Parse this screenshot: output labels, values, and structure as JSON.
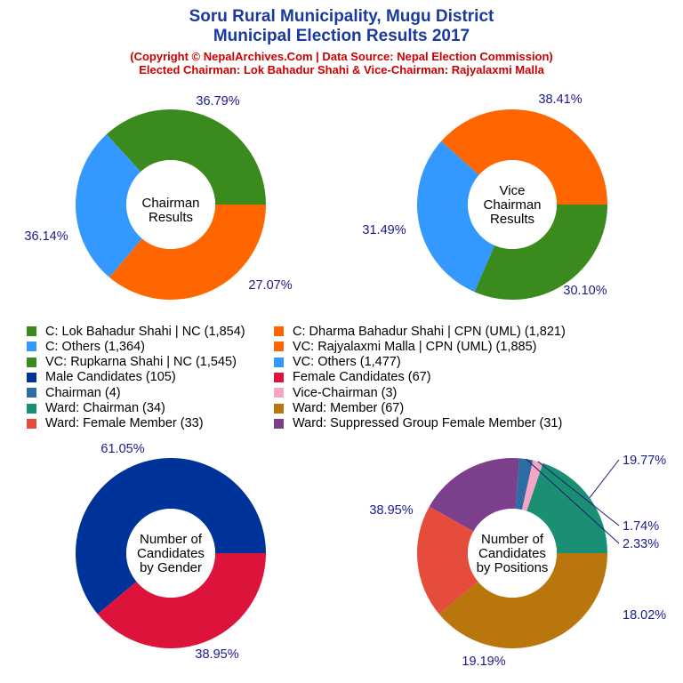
{
  "header": {
    "title_line1": "Soru Rural Municipality, Mugu District",
    "title_line2": "Municipal Election Results 2017",
    "subtitle_line1": "(Copyright © NepalArchives.Com | Data Source: Nepal Election Commission)",
    "subtitle_line2": "Elected Chairman: Lok Bahadur Shahi & Vice-Chairman: Rajyalaxmi Malla"
  },
  "legend": {
    "items": [
      {
        "label": "C: Lok Bahadur Shahi | NC (1,854)",
        "color": "#3a8a1e"
      },
      {
        "label": "C: Dharma Bahadur Shahi | CPN (UML) (1,821)",
        "color": "#ff6600"
      },
      {
        "label": "C: Others (1,364)",
        "color": "#3399ff"
      },
      {
        "label": "VC: Rajyalaxmi Malla | CPN (UML) (1,885)",
        "color": "#ff6600"
      },
      {
        "label": "VC: Rupkarna Shahi | NC (1,545)",
        "color": "#3a8a1e"
      },
      {
        "label": "VC: Others (1,477)",
        "color": "#3399ff"
      },
      {
        "label": "Male Candidates (105)",
        "color": "#003399"
      },
      {
        "label": "Female Candidates (67)",
        "color": "#dc143c"
      },
      {
        "label": "Chairman (4)",
        "color": "#2e6da4"
      },
      {
        "label": "Vice-Chairman (3)",
        "color": "#f4a6c4"
      },
      {
        "label": "Ward: Chairman (34)",
        "color": "#1a8f74"
      },
      {
        "label": "Ward: Member (67)",
        "color": "#b8760c"
      },
      {
        "label": "Ward: Female Member (33)",
        "color": "#e64c3c"
      },
      {
        "label": "Ward: Suppressed Group Female Member (31)",
        "color": "#7b3f8c"
      }
    ]
  },
  "chart_data": [
    {
      "type": "pie",
      "variant": "donut",
      "center_label": [
        "Chairman",
        "Results"
      ],
      "slices": [
        {
          "name": "C: Lok Bahadur Shahi | NC",
          "value": 1854,
          "percent_label": "36.79%",
          "color": "#3a8a1e"
        },
        {
          "name": "C: Others",
          "value": 1364,
          "percent_label": "27.07%",
          "color": "#3399ff"
        },
        {
          "name": "C: Dharma Bahadur Shahi | CPN (UML)",
          "value": 1821,
          "percent_label": "36.14%",
          "color": "#ff6600"
        }
      ]
    },
    {
      "type": "pie",
      "variant": "donut",
      "center_label": [
        "Vice",
        "Chairman",
        "Results"
      ],
      "slices": [
        {
          "name": "VC: Rajyalaxmi Malla | CPN (UML)",
          "value": 1885,
          "percent_label": "38.41%",
          "color": "#ff6600"
        },
        {
          "name": "VC: Others",
          "value": 1477,
          "percent_label": "30.10%",
          "color": "#3399ff"
        },
        {
          "name": "VC: Rupkarna Shahi | NC",
          "value": 1545,
          "percent_label": "31.49%",
          "color": "#3a8a1e"
        }
      ]
    },
    {
      "type": "pie",
      "variant": "donut",
      "center_label": [
        "Number of",
        "Candidates",
        "by Gender"
      ],
      "slices": [
        {
          "name": "Male Candidates",
          "value": 105,
          "percent_label": "61.05%",
          "color": "#003399"
        },
        {
          "name": "Female Candidates",
          "value": 67,
          "percent_label": "38.95%",
          "color": "#dc143c"
        }
      ]
    },
    {
      "type": "pie",
      "variant": "donut",
      "center_label": [
        "Number of",
        "Candidates",
        "by Positions"
      ],
      "slices": [
        {
          "name": "Ward: Chairman",
          "value": 34,
          "percent_label": "19.77%",
          "color": "#1a8f74"
        },
        {
          "name": "Vice-Chairman",
          "value": 3,
          "percent_label": "1.74%",
          "color": "#f4a6c4"
        },
        {
          "name": "Chairman",
          "value": 4,
          "percent_label": "2.33%",
          "color": "#2e6da4"
        },
        {
          "name": "Ward: Suppressed Group Female Member",
          "value": 31,
          "percent_label": "18.02%",
          "color": "#7b3f8c"
        },
        {
          "name": "Ward: Female Member",
          "value": 33,
          "percent_label": "19.19%",
          "color": "#e64c3c"
        },
        {
          "name": "Ward: Member",
          "value": 67,
          "percent_label": "38.95%",
          "color": "#b8760c"
        }
      ]
    }
  ]
}
